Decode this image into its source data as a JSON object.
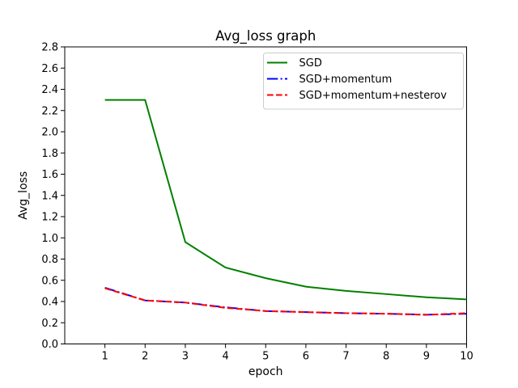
{
  "figure": {
    "background": "#ffffff",
    "spine_color": "#000000",
    "text_color": "#000000",
    "legend_border_color": "#cccccc",
    "legend_background": "#ffffff"
  },
  "chart_data": {
    "type": "line",
    "title": "Avg_loss graph",
    "xlabel": "epoch",
    "ylabel": "Avg_loss",
    "xlim": [
      0,
      10
    ],
    "ylim": [
      0.0,
      2.8
    ],
    "x_ticks": [
      1,
      2,
      3,
      4,
      5,
      6,
      7,
      8,
      9,
      10
    ],
    "y_ticks": [
      "0.0",
      "0.2",
      "0.4",
      "0.6",
      "0.8",
      "1.0",
      "1.2",
      "1.4",
      "1.6",
      "1.8",
      "2.0",
      "2.2",
      "2.4",
      "2.6",
      "2.8"
    ],
    "grid": false,
    "legend_position": "upper right",
    "x": [
      1,
      2,
      3,
      4,
      5,
      6,
      7,
      8,
      9,
      10
    ],
    "series": [
      {
        "name": "SGD",
        "color": "#008000",
        "style": "solid",
        "values": [
          2.3,
          2.3,
          0.96,
          0.72,
          0.62,
          0.54,
          0.5,
          0.47,
          0.44,
          0.42
        ]
      },
      {
        "name": "SGD+momentum",
        "color": "#0000ff",
        "style": "dashdot",
        "values": [
          0.53,
          0.41,
          0.39,
          0.345,
          0.31,
          0.3,
          0.29,
          0.285,
          0.275,
          0.285
        ]
      },
      {
        "name": "SGD+momentum+nesterov",
        "color": "#ff0000",
        "style": "dashed",
        "values": [
          0.525,
          0.41,
          0.39,
          0.34,
          0.31,
          0.3,
          0.29,
          0.285,
          0.275,
          0.29
        ]
      }
    ]
  }
}
